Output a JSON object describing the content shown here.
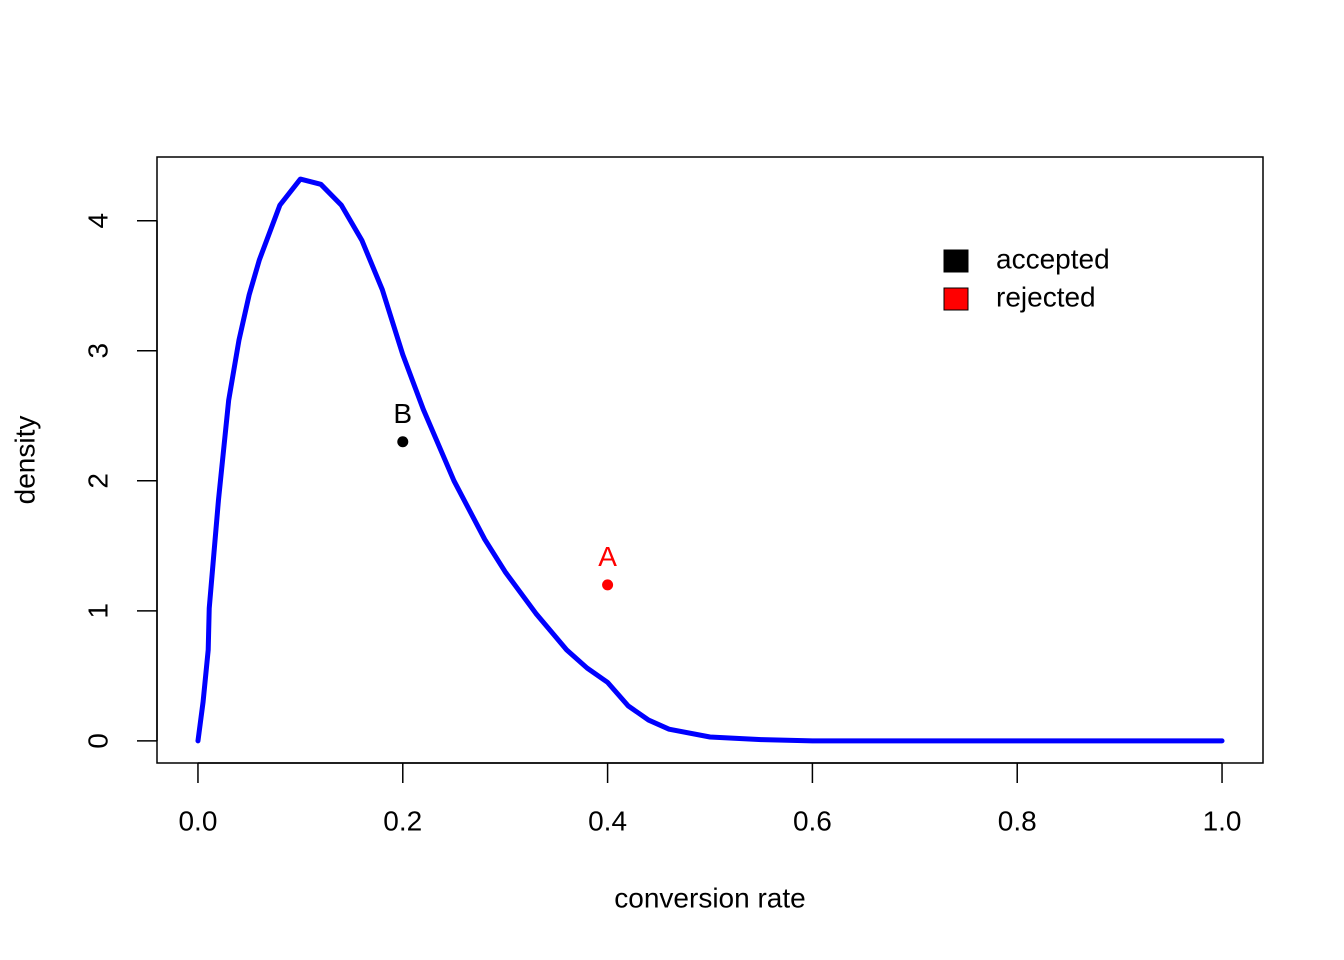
{
  "chart_data": {
    "type": "line",
    "xlabel": "conversion rate",
    "ylabel": "density",
    "x": [
      0,
      0.005,
      0.01,
      0.011,
      0.02,
      0.03,
      0.04,
      0.05,
      0.06,
      0.08,
      0.1,
      0.12,
      0.14,
      0.16,
      0.18,
      0.2,
      0.22,
      0.25,
      0.28,
      0.3,
      0.33,
      0.36,
      0.38,
      0.4,
      0.42,
      0.44,
      0.46,
      0.5,
      0.55,
      0.6,
      0.7,
      0.8,
      0.9,
      1.0
    ],
    "series": [
      {
        "color": "#0000ff",
        "values": [
          0,
          0.3,
          0.7,
          1.02,
          1.85,
          2.62,
          3.08,
          3.43,
          3.7,
          4.12,
          4.32,
          4.28,
          4.12,
          3.85,
          3.47,
          2.97,
          2.55,
          2.0,
          1.55,
          1.3,
          0.98,
          0.7,
          0.56,
          0.45,
          0.27,
          0.16,
          0.09,
          0.03,
          0.01,
          0,
          0,
          0,
          0,
          0
        ]
      }
    ],
    "points": [
      {
        "label": "B",
        "x": 0.2,
        "y": 2.3,
        "color": "#000000"
      },
      {
        "label": "A",
        "x": 0.4,
        "y": 1.2,
        "color": "#ff0000"
      }
    ],
    "legend": [
      {
        "label": "accepted",
        "color": "#000000"
      },
      {
        "label": "rejected",
        "color": "#ff0000"
      }
    ],
    "xlim": [
      -0.04,
      1.04
    ],
    "ylim": [
      -0.17,
      4.49
    ],
    "xticks": [
      {
        "value": 0,
        "label": "0.0"
      },
      0.2,
      0.4,
      0.6,
      0.8,
      {
        "value": 1,
        "label": "1.0"
      }
    ],
    "yticks": [
      0,
      1,
      2,
      3,
      4
    ]
  }
}
